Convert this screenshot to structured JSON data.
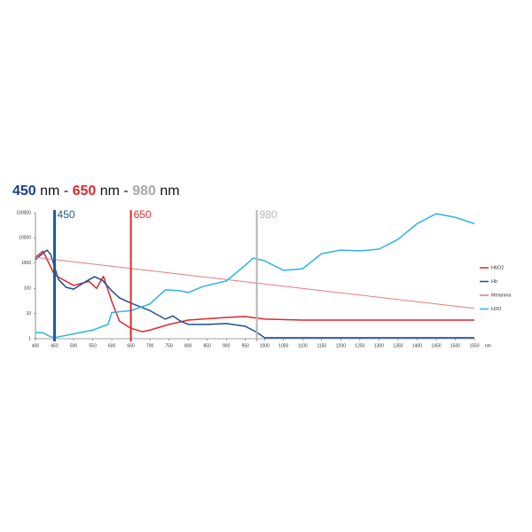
{
  "chart_data": {
    "type": "line",
    "title_parts": [
      {
        "text": "450",
        "color": "#1b3c8c"
      },
      {
        "text": " nm - ",
        "color": "#111111"
      },
      {
        "text": "650",
        "color": "#e3262b"
      },
      {
        "text": " nm - ",
        "color": "#111111"
      },
      {
        "text": "980",
        "color": "#a9a9a9"
      },
      {
        "text": " nm",
        "color": "#111111"
      }
    ],
    "x_unit": "nm",
    "xlim": [
      400,
      1550
    ],
    "xticks": [
      400,
      450,
      500,
      550,
      600,
      650,
      700,
      750,
      800,
      850,
      900,
      950,
      1000,
      1050,
      1100,
      1150,
      1200,
      1250,
      1300,
      1350,
      1400,
      1450,
      1500,
      1550
    ],
    "ylim": [
      1,
      100000
    ],
    "yticks": [
      1,
      10,
      100,
      1000,
      10000,
      100000
    ],
    "log_y": true,
    "markers": [
      {
        "value": 450,
        "label": "450",
        "color": "#1b5aa6"
      },
      {
        "value": 650,
        "label": "650",
        "color": "#e3262b"
      },
      {
        "value": 980,
        "label": "980",
        "color": "#b5b5b5"
      }
    ],
    "series": [
      {
        "name": "HbO2",
        "color": "#e3262b",
        "x": [
          400,
          420,
          450,
          500,
          540,
          560,
          578,
          600,
          620,
          650,
          680,
          700,
          750,
          800,
          900,
          950,
          1000,
          1100,
          1550
        ],
        "values": [
          1700,
          3000,
          340,
          130,
          190,
          100,
          300,
          30,
          5,
          2.6,
          1.9,
          2.2,
          3.7,
          5.5,
          7,
          7.6,
          6,
          5.5,
          5.5
        ]
      },
      {
        "name": "Hb",
        "color": "#1b4f96",
        "x": [
          400,
          430,
          440,
          460,
          480,
          500,
          530,
          555,
          575,
          600,
          620,
          650,
          700,
          740,
          760,
          780,
          800,
          850,
          900,
          950,
          980,
          1000,
          1550
        ],
        "values": [
          1400,
          3300,
          2200,
          230,
          110,
          93,
          180,
          290,
          210,
          80,
          42,
          26,
          13,
          6,
          8,
          5,
          3.7,
          3.7,
          4,
          3.1,
          1.8,
          1.1,
          1.1
        ]
      },
      {
        "name": "Melanina",
        "color": "#e87a7a",
        "x": [
          400,
          1550
        ],
        "values": [
          1700,
          16
        ]
      },
      {
        "name": "H2O",
        "color": "#2bb3e3",
        "x": [
          400,
          420,
          430,
          440,
          450,
          550,
          590,
          600,
          650,
          700,
          740,
          780,
          800,
          840,
          900,
          950,
          970,
          1000,
          1050,
          1100,
          1150,
          1200,
          1250,
          1300,
          1350,
          1400,
          1450,
          1500,
          1550
        ],
        "values": [
          1.8,
          1.7,
          1.4,
          1.2,
          1.1,
          2.2,
          3.7,
          11,
          13,
          24,
          87,
          80,
          68,
          120,
          195,
          830,
          1600,
          1250,
          520,
          600,
          2400,
          3300,
          3100,
          3600,
          8800,
          37000,
          92000,
          66000,
          37000
        ]
      }
    ]
  }
}
